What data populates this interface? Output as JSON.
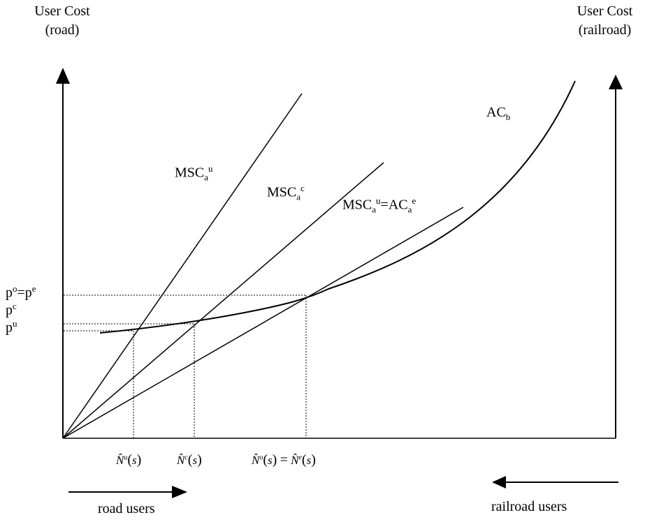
{
  "axes": {
    "left_title_line1": "User Cost",
    "left_title_line2": "(road)",
    "right_title_line1": "User Cost",
    "right_title_line2": "(railroad)"
  },
  "curves": {
    "msc_u": {
      "base": "MSC",
      "sub": "a",
      "sup": "u"
    },
    "msc_c": {
      "base": "MSC",
      "sub": "a",
      "sup": "c"
    },
    "msc_eq": {
      "base1": "MSC",
      "sub1": "a",
      "sup1": "u",
      "eq": "=",
      "base2": "AC",
      "sub2": "a",
      "sup2": "e"
    },
    "ac_b": {
      "base": "AC",
      "sub": "b"
    }
  },
  "prices": {
    "po_pe": {
      "p1": "p",
      "s1": "o",
      "eq": "=",
      "p2": "p",
      "s2": "e"
    },
    "pc": {
      "p": "p",
      "s": "c"
    },
    "pu": {
      "p": "p",
      "s": "u"
    }
  },
  "quantities": {
    "n_u": {
      "hat": "N̂",
      "sup": "u",
      "arg": "s"
    },
    "n_c": {
      "hat": "N̂",
      "sup": "c",
      "arg": "s"
    },
    "n_o_e": {
      "hat1": "N̂",
      "sup1": "o",
      "arg1": "s",
      "eq": "=",
      "hat2": "N̂",
      "sup2": "e",
      "arg2": "s"
    }
  },
  "directions": {
    "road_users": "road users",
    "railroad_users": "railroad users"
  }
}
